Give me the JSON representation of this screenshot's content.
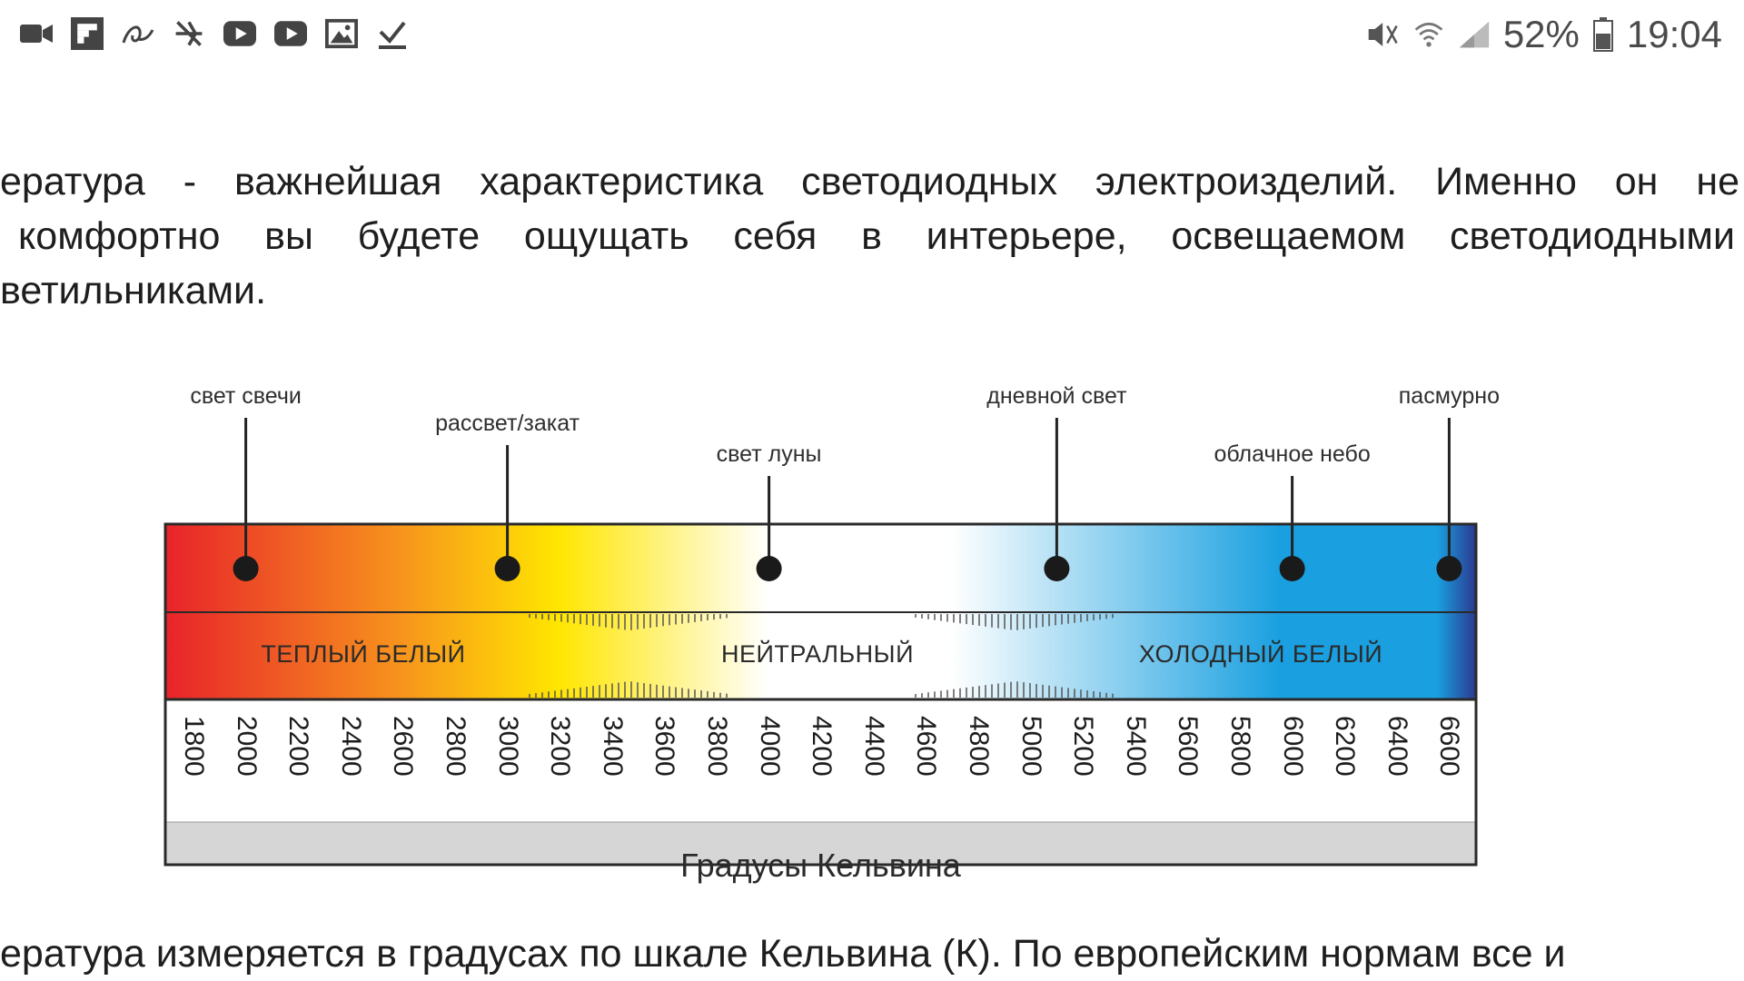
{
  "status_bar": {
    "left_icons": [
      "video-camera-icon",
      "flipboard-icon",
      "app-a-icon",
      "airplane-cross-icon",
      "youtube-icon",
      "youtube-icon",
      "image-icon",
      "download-check-icon"
    ],
    "right_icons": [
      "mute-icon",
      "wifi-icon",
      "signal-icon",
      "battery-icon"
    ],
    "battery": "52%",
    "time": "19:04"
  },
  "article": {
    "para1_lines": [
      "ература - важнейшая характеристика светодиодных электроизделий. Именно он не",
      "комфортно вы будете ощущать себя в интерьере, освещаемом светодиодными",
      "ветильниками."
    ],
    "para2": "ература измеряется в градусах по шкале Кельвина (К). По европейским нормам все и"
  },
  "figure": {
    "markers": [
      {
        "label": "свет свечи",
        "kelvin": 2000
      },
      {
        "label": "рассвет/закат",
        "kelvin": 3000
      },
      {
        "label": "свет луны",
        "kelvin": 4000
      },
      {
        "label": "дневной свет",
        "kelvin": 5100
      },
      {
        "label": "облачное небо",
        "kelvin": 6000
      },
      {
        "label": "пасмурно",
        "kelvin": 6600
      }
    ],
    "zones": [
      {
        "label": "ТЕПЛЫЙ БЕЛЫЙ"
      },
      {
        "label": "НЕЙТРАЛЬНЫЙ"
      },
      {
        "label": "ХОЛОДНЫЙ БЕЛЫЙ"
      }
    ],
    "ticks": [
      "1800",
      "2000",
      "2200",
      "2400",
      "2600",
      "2800",
      "3000",
      "3200",
      "3400",
      "3600",
      "3800",
      "4000",
      "4200",
      "4400",
      "4600",
      "4800",
      "5000",
      "5200",
      "5400",
      "5600",
      "5800",
      "6000",
      "6200",
      "6400",
      "6600"
    ],
    "scale_label": "Градусы Кельвина",
    "colors": {
      "warm_start": "#e8232a",
      "orange": "#f7941d",
      "yellow": "#ffe600",
      "neutral": "#ffffff",
      "cold": "#1aa0e0",
      "cold_end": "#2b3990",
      "frame": "#2a2a2a",
      "scale_bg": "#d6d6d6"
    }
  }
}
